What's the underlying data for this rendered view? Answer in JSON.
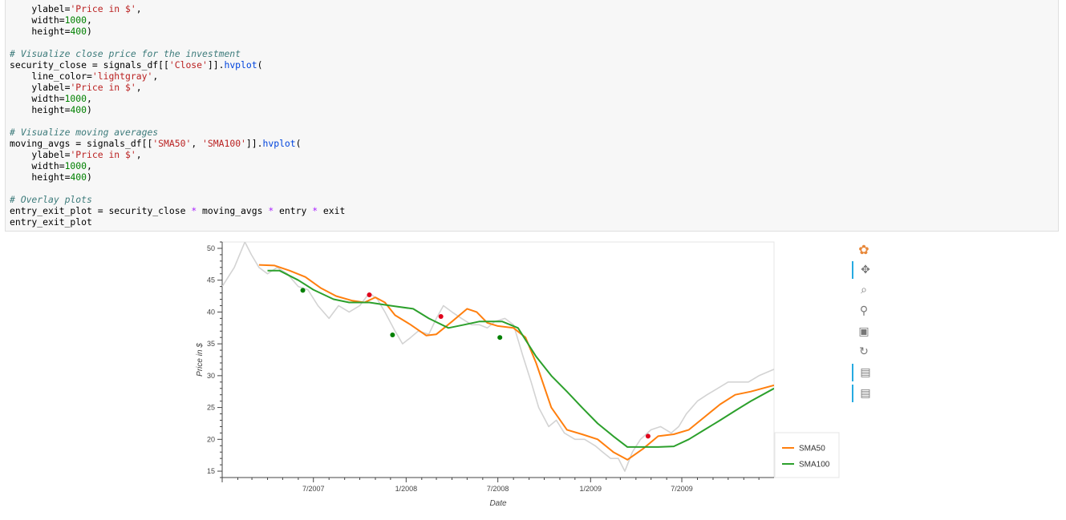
{
  "code_lines": [
    "    ylabel='Price in $',",
    "    width=1000,",
    "    height=400)",
    "",
    "# Visualize close price for the investment",
    "security_close = signals_df[['Close']].hvplot(",
    "    line_color='lightgray',",
    "    ylabel='Price in $',",
    "    width=1000,",
    "    height=400)",
    "",
    "# Visualize moving averages",
    "moving_avgs = signals_df[['SMA50', 'SMA100']].hvplot(",
    "    ylabel='Price in $',",
    "    width=1000,",
    "    height=400)",
    "",
    "# Overlay plots",
    "entry_exit_plot = security_close * moving_avgs * entry * exit",
    "entry_exit_plot"
  ],
  "toolbar": {
    "tools": [
      {
        "name": "bokeh-logo-icon",
        "glyph": "✿",
        "active": false
      },
      {
        "name": "pan-icon",
        "glyph": "✥",
        "active": true
      },
      {
        "name": "box-zoom-icon",
        "glyph": "⌕",
        "active": false
      },
      {
        "name": "wheel-zoom-icon",
        "glyph": "⚲",
        "active": false
      },
      {
        "name": "save-icon",
        "glyph": "▣",
        "active": false
      },
      {
        "name": "reset-icon",
        "glyph": "↻",
        "active": false
      },
      {
        "name": "hover-icon",
        "glyph": "▤",
        "active": true
      },
      {
        "name": "hover-icon-2",
        "glyph": "▤",
        "active": true
      }
    ]
  },
  "chart_data": {
    "type": "line",
    "xlabel": "Date",
    "ylabel": "Price in $",
    "xlim": [
      "2007-01-01",
      "2009-12-31"
    ],
    "ylim": [
      14,
      51
    ],
    "x_ticks": [
      {
        "date": "2007-07-01",
        "label": "7/2007"
      },
      {
        "date": "2008-01-01",
        "label": "1/2008"
      },
      {
        "date": "2008-07-01",
        "label": "7/2008"
      },
      {
        "date": "2009-01-01",
        "label": "1/2009"
      },
      {
        "date": "2009-07-01",
        "label": "7/2009"
      }
    ],
    "y_ticks": [
      15,
      20,
      25,
      30,
      35,
      40,
      45,
      50
    ],
    "series": [
      {
        "name": "Close",
        "color": "#d3d3d3",
        "points": [
          [
            "2007-01-01",
            44
          ],
          [
            "2007-01-25",
            47
          ],
          [
            "2007-02-15",
            51
          ],
          [
            "2007-02-28",
            49
          ],
          [
            "2007-03-15",
            47
          ],
          [
            "2007-04-01",
            46
          ],
          [
            "2007-04-20",
            47
          ],
          [
            "2007-05-10",
            46
          ],
          [
            "2007-06-01",
            44
          ],
          [
            "2007-06-20",
            43.5
          ],
          [
            "2007-07-10",
            41
          ],
          [
            "2007-08-01",
            39
          ],
          [
            "2007-08-20",
            41
          ],
          [
            "2007-09-10",
            40
          ],
          [
            "2007-10-01",
            41
          ],
          [
            "2007-10-20",
            43
          ],
          [
            "2007-11-05",
            42
          ],
          [
            "2007-11-20",
            40
          ],
          [
            "2007-12-10",
            37
          ],
          [
            "2007-12-25",
            35
          ],
          [
            "2008-01-10",
            36
          ],
          [
            "2008-01-25",
            37
          ],
          [
            "2008-02-15",
            36.5
          ],
          [
            "2008-03-01",
            39
          ],
          [
            "2008-03-15",
            41
          ],
          [
            "2008-04-01",
            40
          ],
          [
            "2008-04-20",
            39
          ],
          [
            "2008-05-10",
            38
          ],
          [
            "2008-05-25",
            38
          ],
          [
            "2008-06-10",
            37.5
          ],
          [
            "2008-06-25",
            38.5
          ],
          [
            "2008-07-15",
            39
          ],
          [
            "2008-08-01",
            38
          ],
          [
            "2008-08-20",
            33
          ],
          [
            "2008-09-05",
            29
          ],
          [
            "2008-09-20",
            25
          ],
          [
            "2008-10-10",
            22
          ],
          [
            "2008-10-25",
            23
          ],
          [
            "2008-11-10",
            21
          ],
          [
            "2008-12-01",
            20
          ],
          [
            "2008-12-20",
            20
          ],
          [
            "2009-01-10",
            19
          ],
          [
            "2009-01-25",
            18
          ],
          [
            "2009-02-10",
            17
          ],
          [
            "2009-02-25",
            17
          ],
          [
            "2009-03-10",
            15
          ],
          [
            "2009-03-25",
            18
          ],
          [
            "2009-04-10",
            20
          ],
          [
            "2009-05-01",
            21.5
          ],
          [
            "2009-05-20",
            22
          ],
          [
            "2009-06-10",
            21
          ],
          [
            "2009-06-25",
            22
          ],
          [
            "2009-07-10",
            24
          ],
          [
            "2009-08-01",
            26
          ],
          [
            "2009-08-20",
            27
          ],
          [
            "2009-09-10",
            28
          ],
          [
            "2009-10-01",
            29
          ],
          [
            "2009-10-20",
            29
          ],
          [
            "2009-11-10",
            29
          ],
          [
            "2009-12-01",
            30
          ],
          [
            "2009-12-31",
            31
          ]
        ]
      },
      {
        "name": "SMA50",
        "color": "#ff7f0e",
        "points": [
          [
            "2007-03-15",
            47.4
          ],
          [
            "2007-04-15",
            47.3
          ],
          [
            "2007-05-15",
            46.5
          ],
          [
            "2007-06-15",
            45.5
          ],
          [
            "2007-07-15",
            43.8
          ],
          [
            "2007-08-15",
            42.5
          ],
          [
            "2007-09-15",
            41.8
          ],
          [
            "2007-10-10",
            41.5
          ],
          [
            "2007-11-01",
            42.3
          ],
          [
            "2007-11-20",
            41.5
          ],
          [
            "2007-12-10",
            39.5
          ],
          [
            "2008-01-10",
            38
          ],
          [
            "2008-02-10",
            36.3
          ],
          [
            "2008-03-01",
            36.5
          ],
          [
            "2008-04-01",
            38.5
          ],
          [
            "2008-05-01",
            40.5
          ],
          [
            "2008-05-20",
            40
          ],
          [
            "2008-06-10",
            38.3
          ],
          [
            "2008-07-01",
            37.8
          ],
          [
            "2008-08-01",
            37.5
          ],
          [
            "2008-08-25",
            36
          ],
          [
            "2008-09-15",
            32
          ],
          [
            "2008-10-15",
            25
          ],
          [
            "2008-11-15",
            21.5
          ],
          [
            "2008-12-15",
            20.8
          ],
          [
            "2009-01-15",
            20
          ],
          [
            "2009-02-15",
            18
          ],
          [
            "2009-03-15",
            16.8
          ],
          [
            "2009-04-15",
            18.5
          ],
          [
            "2009-05-15",
            20.5
          ],
          [
            "2009-06-15",
            20.8
          ],
          [
            "2009-07-15",
            21.5
          ],
          [
            "2009-08-15",
            23.5
          ],
          [
            "2009-09-15",
            25.5
          ],
          [
            "2009-10-15",
            27
          ],
          [
            "2009-11-15",
            27.5
          ],
          [
            "2009-12-31",
            28.5
          ]
        ]
      },
      {
        "name": "SMA100",
        "color": "#2ca02c",
        "points": [
          [
            "2007-04-01",
            46.5
          ],
          [
            "2007-04-25",
            46.5
          ],
          [
            "2007-06-01",
            45
          ],
          [
            "2007-07-01",
            43.5
          ],
          [
            "2007-08-10",
            42
          ],
          [
            "2007-09-10",
            41.5
          ],
          [
            "2007-10-20",
            41.5
          ],
          [
            "2007-12-01",
            41
          ],
          [
            "2008-01-15",
            40.5
          ],
          [
            "2008-02-15",
            39
          ],
          [
            "2008-03-25",
            37.5
          ],
          [
            "2008-04-25",
            38
          ],
          [
            "2008-05-25",
            38.5
          ],
          [
            "2008-07-10",
            38.5
          ],
          [
            "2008-08-10",
            37.5
          ],
          [
            "2008-09-15",
            33
          ],
          [
            "2008-10-15",
            30
          ],
          [
            "2008-11-15",
            27.5
          ],
          [
            "2008-12-15",
            25
          ],
          [
            "2009-01-15",
            22.5
          ],
          [
            "2009-02-15",
            20.5
          ],
          [
            "2009-03-15",
            18.8
          ],
          [
            "2009-04-15",
            18.8
          ],
          [
            "2009-05-15",
            18.8
          ],
          [
            "2009-06-15",
            18.9
          ],
          [
            "2009-07-15",
            20
          ],
          [
            "2009-08-15",
            21.5
          ],
          [
            "2009-09-15",
            23
          ],
          [
            "2009-10-15",
            24.5
          ],
          [
            "2009-11-15",
            26
          ],
          [
            "2009-12-31",
            28
          ]
        ]
      }
    ],
    "entry_points": {
      "color": "#008000",
      "points": [
        [
          "2007-06-10",
          43.4
        ],
        [
          "2007-12-05",
          36.4
        ],
        [
          "2008-07-05",
          36
        ]
      ]
    },
    "exit_points": {
      "color": "#e0001b",
      "points": [
        [
          "2007-10-20",
          42.7
        ],
        [
          "2008-03-10",
          39.3
        ],
        [
          "2009-04-25",
          20.5
        ]
      ]
    },
    "legend": {
      "placement": "bottom-right",
      "entries": [
        {
          "label": "SMA50",
          "color": "#ff7f0e"
        },
        {
          "label": "SMA100",
          "color": "#2ca02c"
        }
      ]
    }
  }
}
